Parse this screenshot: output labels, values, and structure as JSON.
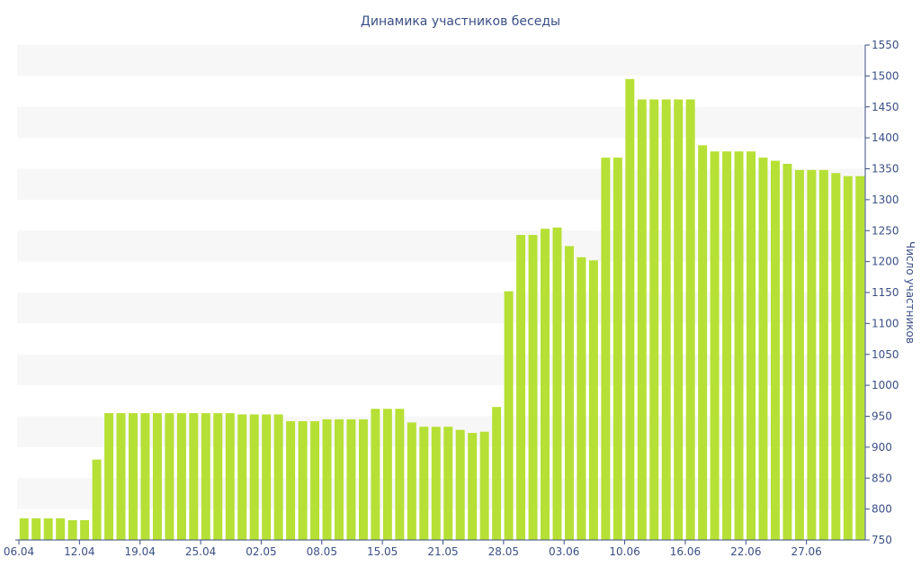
{
  "chart_data": {
    "type": "bar",
    "title": "Динамика участников беседы",
    "xlabel": "",
    "ylabel": "Число участников",
    "ylim": [
      750,
      1550
    ],
    "ytick_step": 50,
    "y_axis_position": "right",
    "grid": "alternating horizontal bands",
    "x_tick_labels": [
      "06.04",
      "12.04",
      "19.04",
      "25.04",
      "02.05",
      "08.05",
      "15.05",
      "21.05",
      "28.05",
      "03.06",
      "10.06",
      "16.06",
      "22.06",
      "27.06"
    ],
    "x_tick_indices": [
      0,
      5,
      10,
      15,
      20,
      25,
      30,
      35,
      40,
      45,
      50,
      55,
      60,
      65
    ],
    "values": [
      785,
      785,
      785,
      785,
      782,
      782,
      880,
      955,
      955,
      955,
      955,
      955,
      955,
      955,
      955,
      955,
      955,
      955,
      953,
      953,
      953,
      953,
      942,
      942,
      942,
      945,
      945,
      945,
      945,
      962,
      962,
      962,
      940,
      933,
      933,
      933,
      928,
      923,
      925,
      965,
      1152,
      1243,
      1243,
      1253,
      1255,
      1225,
      1207,
      1202,
      1368,
      1368,
      1495,
      1462,
      1462,
      1462,
      1462,
      1462,
      1388,
      1378,
      1378,
      1378,
      1378,
      1368,
      1363,
      1358,
      1348,
      1348,
      1348,
      1343,
      1338,
      1338
    ],
    "colors": {
      "bar": "#b6e035",
      "band": "#f7f7f7",
      "axis": "#3a4f86",
      "text": "#3a4f86"
    }
  }
}
